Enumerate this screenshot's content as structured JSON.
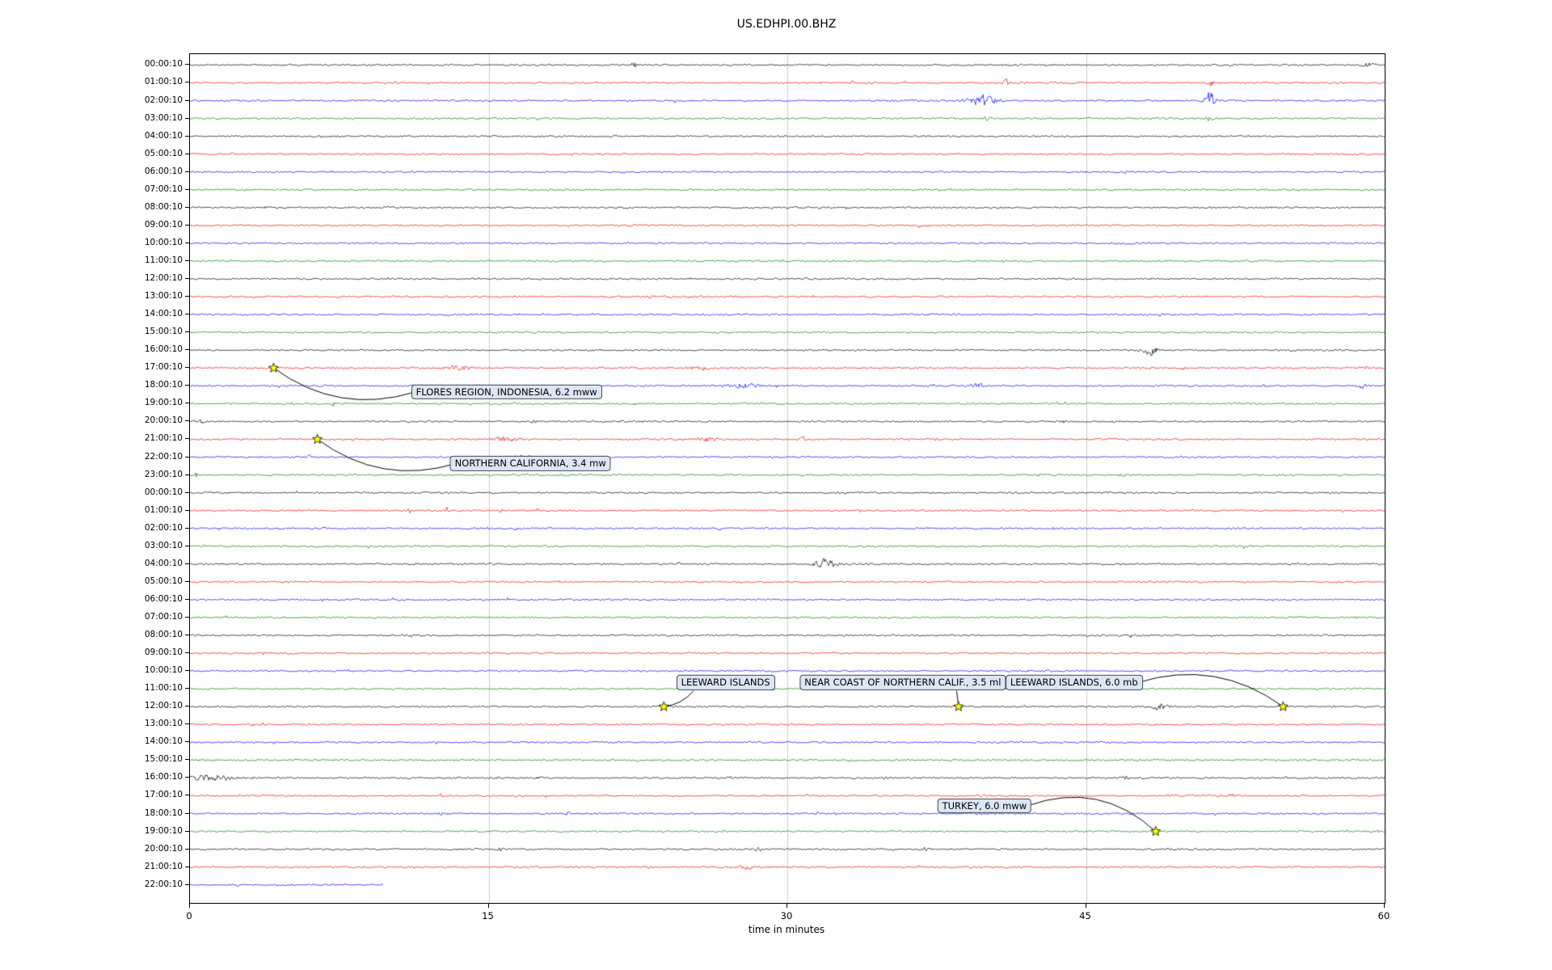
{
  "title": "US.EDHPI.00.BHZ",
  "chart_data": {
    "type": "line",
    "subtype": "seismogram-dayplot",
    "title": "US.EDHPI.00.BHZ",
    "xlabel": "time in minutes",
    "xlim": [
      0,
      60
    ],
    "x_ticks": [
      "0",
      "15",
      "30",
      "45",
      "60"
    ],
    "x_tick_minutes": [
      0,
      15,
      30,
      45,
      60
    ],
    "grid": {
      "vertical_lines_minutes": [
        15,
        30,
        45
      ],
      "color": "#cccccc"
    },
    "trace_colors": [
      "#000000",
      "#ff0000",
      "#0000ff",
      "#008000"
    ],
    "minutes_per_row": 60,
    "last_row_end_minute": 9.7,
    "rows": [
      "00:00:10",
      "01:00:10",
      "02:00:10",
      "03:00:10",
      "04:00:10",
      "05:00:10",
      "06:00:10",
      "07:00:10",
      "08:00:10",
      "09:00:10",
      "10:00:10",
      "11:00:10",
      "12:00:10",
      "13:00:10",
      "14:00:10",
      "15:00:10",
      "16:00:10",
      "17:00:10",
      "18:00:10",
      "19:00:10",
      "20:00:10",
      "21:00:10",
      "22:00:10",
      "23:00:10",
      "00:00:10",
      "01:00:10",
      "02:00:10",
      "03:00:10",
      "04:00:10",
      "05:00:10",
      "06:00:10",
      "07:00:10",
      "08:00:10",
      "09:00:10",
      "10:00:10",
      "11:00:10",
      "12:00:10",
      "13:00:10",
      "14:00:10",
      "15:00:10",
      "16:00:10",
      "17:00:10",
      "18:00:10",
      "19:00:10",
      "20:00:10",
      "21:00:10",
      "22:00:10"
    ],
    "events": [
      {
        "label": "FLORES REGION, INDONESIA, 6.2 mww",
        "trace_time": "17:00:10",
        "trace_day": 1,
        "star": {
          "minute": 4.2,
          "row": 17
        },
        "label_pos": {
          "minute": 15.9,
          "row": 18.35
        },
        "leader_from": {
          "minute": 11.3,
          "row": 18.35
        },
        "curve": -0.25,
        "z": 2
      },
      {
        "label": "NORTHERN CALIFORNIA, 3.4 mw",
        "trace_time": "21:00:10",
        "trace_day": 1,
        "star": {
          "minute": 6.4,
          "row": 21
        },
        "label_pos": {
          "minute": 17.1,
          "row": 22.35
        },
        "leader_from": {
          "minute": 13.4,
          "row": 22.35
        },
        "curve": -0.25,
        "z": 2
      },
      {
        "label": "LEEWARD ISLANDS",
        "trace_time": "12:00:10",
        "trace_day": 2,
        "star": {
          "minute": 23.8,
          "row": 36
        },
        "label_pos": {
          "minute": 26.9,
          "row": 34.65
        },
        "leader_from": {
          "minute": 25.3,
          "row": 35.1
        },
        "curve": -0.2,
        "z": 3
      },
      {
        "label": "NEAR COAST OF NORTHERN CALIF., 3.5 ml",
        "trace_time": "12:00:10",
        "trace_day": 2,
        "star": {
          "minute": 38.6,
          "row": 36
        },
        "label_pos": {
          "minute": 35.8,
          "row": 34.65
        },
        "leader_from": {
          "minute": 38.5,
          "row": 35.1
        },
        "curve": 0,
        "z": 4
      },
      {
        "label": "LEEWARD ISLANDS, 6.0 mb",
        "trace_time": "12:00:10",
        "trace_day": 2,
        "star": {
          "minute": 54.9,
          "row": 36
        },
        "label_pos": {
          "minute": 44.4,
          "row": 34.65
        },
        "leader_from": {
          "minute": 47.6,
          "row": 34.65
        },
        "curve": -0.25,
        "z": 1
      },
      {
        "label": "TURKEY, 6.0 mww",
        "trace_time": "19:00:10",
        "trace_day": 2,
        "star": {
          "minute": 48.5,
          "row": 43
        },
        "label_pos": {
          "minute": 39.9,
          "row": 41.55
        },
        "leader_from": {
          "minute": 42.1,
          "row": 41.55
        },
        "curve": -0.3,
        "z": 2
      },
      {
        "label": "TURKEY, 6.0 mww",
        "trace_time": "19:00:10",
        "trace_day": 2,
        "hidden_duplicate": true,
        "star": {
          "minute": 48.5,
          "row": 43
        },
        "label_pos": {
          "minute": 39.9,
          "row": 41.55
        },
        "leader_from": {
          "minute": 42.1,
          "row": 41.55
        },
        "curve": -0.3,
        "z": 2
      }
    ],
    "bursts": [
      [
        0,
        22.3,
        0.2,
        5
      ],
      [
        0,
        59.2,
        0.5,
        3
      ],
      [
        1,
        33.2,
        0.15,
        4
      ],
      [
        1,
        41.0,
        0.25,
        7
      ],
      [
        1,
        51.3,
        0.2,
        5
      ],
      [
        2,
        39.8,
        1.2,
        9
      ],
      [
        2,
        51.2,
        0.5,
        12
      ],
      [
        3,
        40.0,
        0.4,
        3
      ],
      [
        3,
        51.2,
        0.25,
        3
      ],
      [
        13,
        25.0,
        8.0,
        0.6
      ],
      [
        16,
        48.2,
        0.6,
        9
      ],
      [
        17,
        4.2,
        0.15,
        2
      ],
      [
        17,
        13.5,
        0.9,
        3
      ],
      [
        17,
        25.6,
        0.8,
        3
      ],
      [
        17,
        49.8,
        0.25,
        2
      ],
      [
        17,
        59.0,
        0.25,
        2
      ],
      [
        18,
        27.8,
        1.4,
        3
      ],
      [
        18,
        39.6,
        0.6,
        2.5
      ],
      [
        18,
        54.0,
        0.3,
        2.5
      ],
      [
        18,
        58.9,
        0.4,
        3.5
      ],
      [
        19,
        7.2,
        0.12,
        3
      ],
      [
        19,
        22.4,
        0.3,
        2.5
      ],
      [
        20,
        0.6,
        0.4,
        2.5
      ],
      [
        20,
        17.3,
        0.3,
        2.5
      ],
      [
        21,
        6.4,
        0.12,
        2
      ],
      [
        21,
        15.8,
        1.0,
        3
      ],
      [
        21,
        26.0,
        1.0,
        3
      ],
      [
        21,
        30.8,
        0.2,
        5
      ],
      [
        22,
        6.0,
        0.12,
        3.5
      ],
      [
        22,
        16.8,
        0.9,
        3
      ],
      [
        23,
        0.3,
        0.25,
        3.5
      ],
      [
        23,
        46.8,
        0.3,
        2.5
      ],
      [
        25,
        11.0,
        0.12,
        4
      ],
      [
        25,
        12.9,
        0.12,
        4
      ],
      [
        25,
        15.6,
        0.12,
        4
      ],
      [
        26,
        4.5,
        0.12,
        3.5
      ],
      [
        26,
        16.4,
        0.15,
        3.5
      ],
      [
        26,
        26.6,
        0.12,
        2.5
      ],
      [
        28,
        31.9,
        0.9,
        7
      ],
      [
        36,
        23.8,
        0.12,
        1.5
      ],
      [
        36,
        48.7,
        0.6,
        5
      ],
      [
        40,
        1.0,
        1.6,
        5
      ],
      [
        40,
        17.6,
        0.25,
        3
      ],
      [
        40,
        35.0,
        0.25,
        2
      ],
      [
        40,
        47.0,
        0.25,
        2.5
      ],
      [
        41,
        12.6,
        0.2,
        2.5
      ],
      [
        41,
        31.0,
        0.15,
        2
      ],
      [
        41,
        52.3,
        0.2,
        2.5
      ],
      [
        42,
        12.7,
        0.3,
        3
      ],
      [
        42,
        19.0,
        0.2,
        2.5
      ],
      [
        42,
        31.5,
        0.15,
        2
      ],
      [
        43,
        59.5,
        0.25,
        4
      ],
      [
        44,
        15.6,
        0.2,
        3
      ],
      [
        44,
        28.5,
        0.4,
        2.5
      ],
      [
        44,
        37.0,
        0.25,
        3
      ],
      [
        45,
        23.0,
        0.3,
        2.5
      ],
      [
        45,
        28.0,
        0.5,
        3
      ],
      [
        45,
        36.6,
        0.2,
        4
      ]
    ],
    "star_color": "#ffff00",
    "label_box": {
      "bg": "#dbe6f6",
      "border": "#4a4a4a"
    }
  }
}
